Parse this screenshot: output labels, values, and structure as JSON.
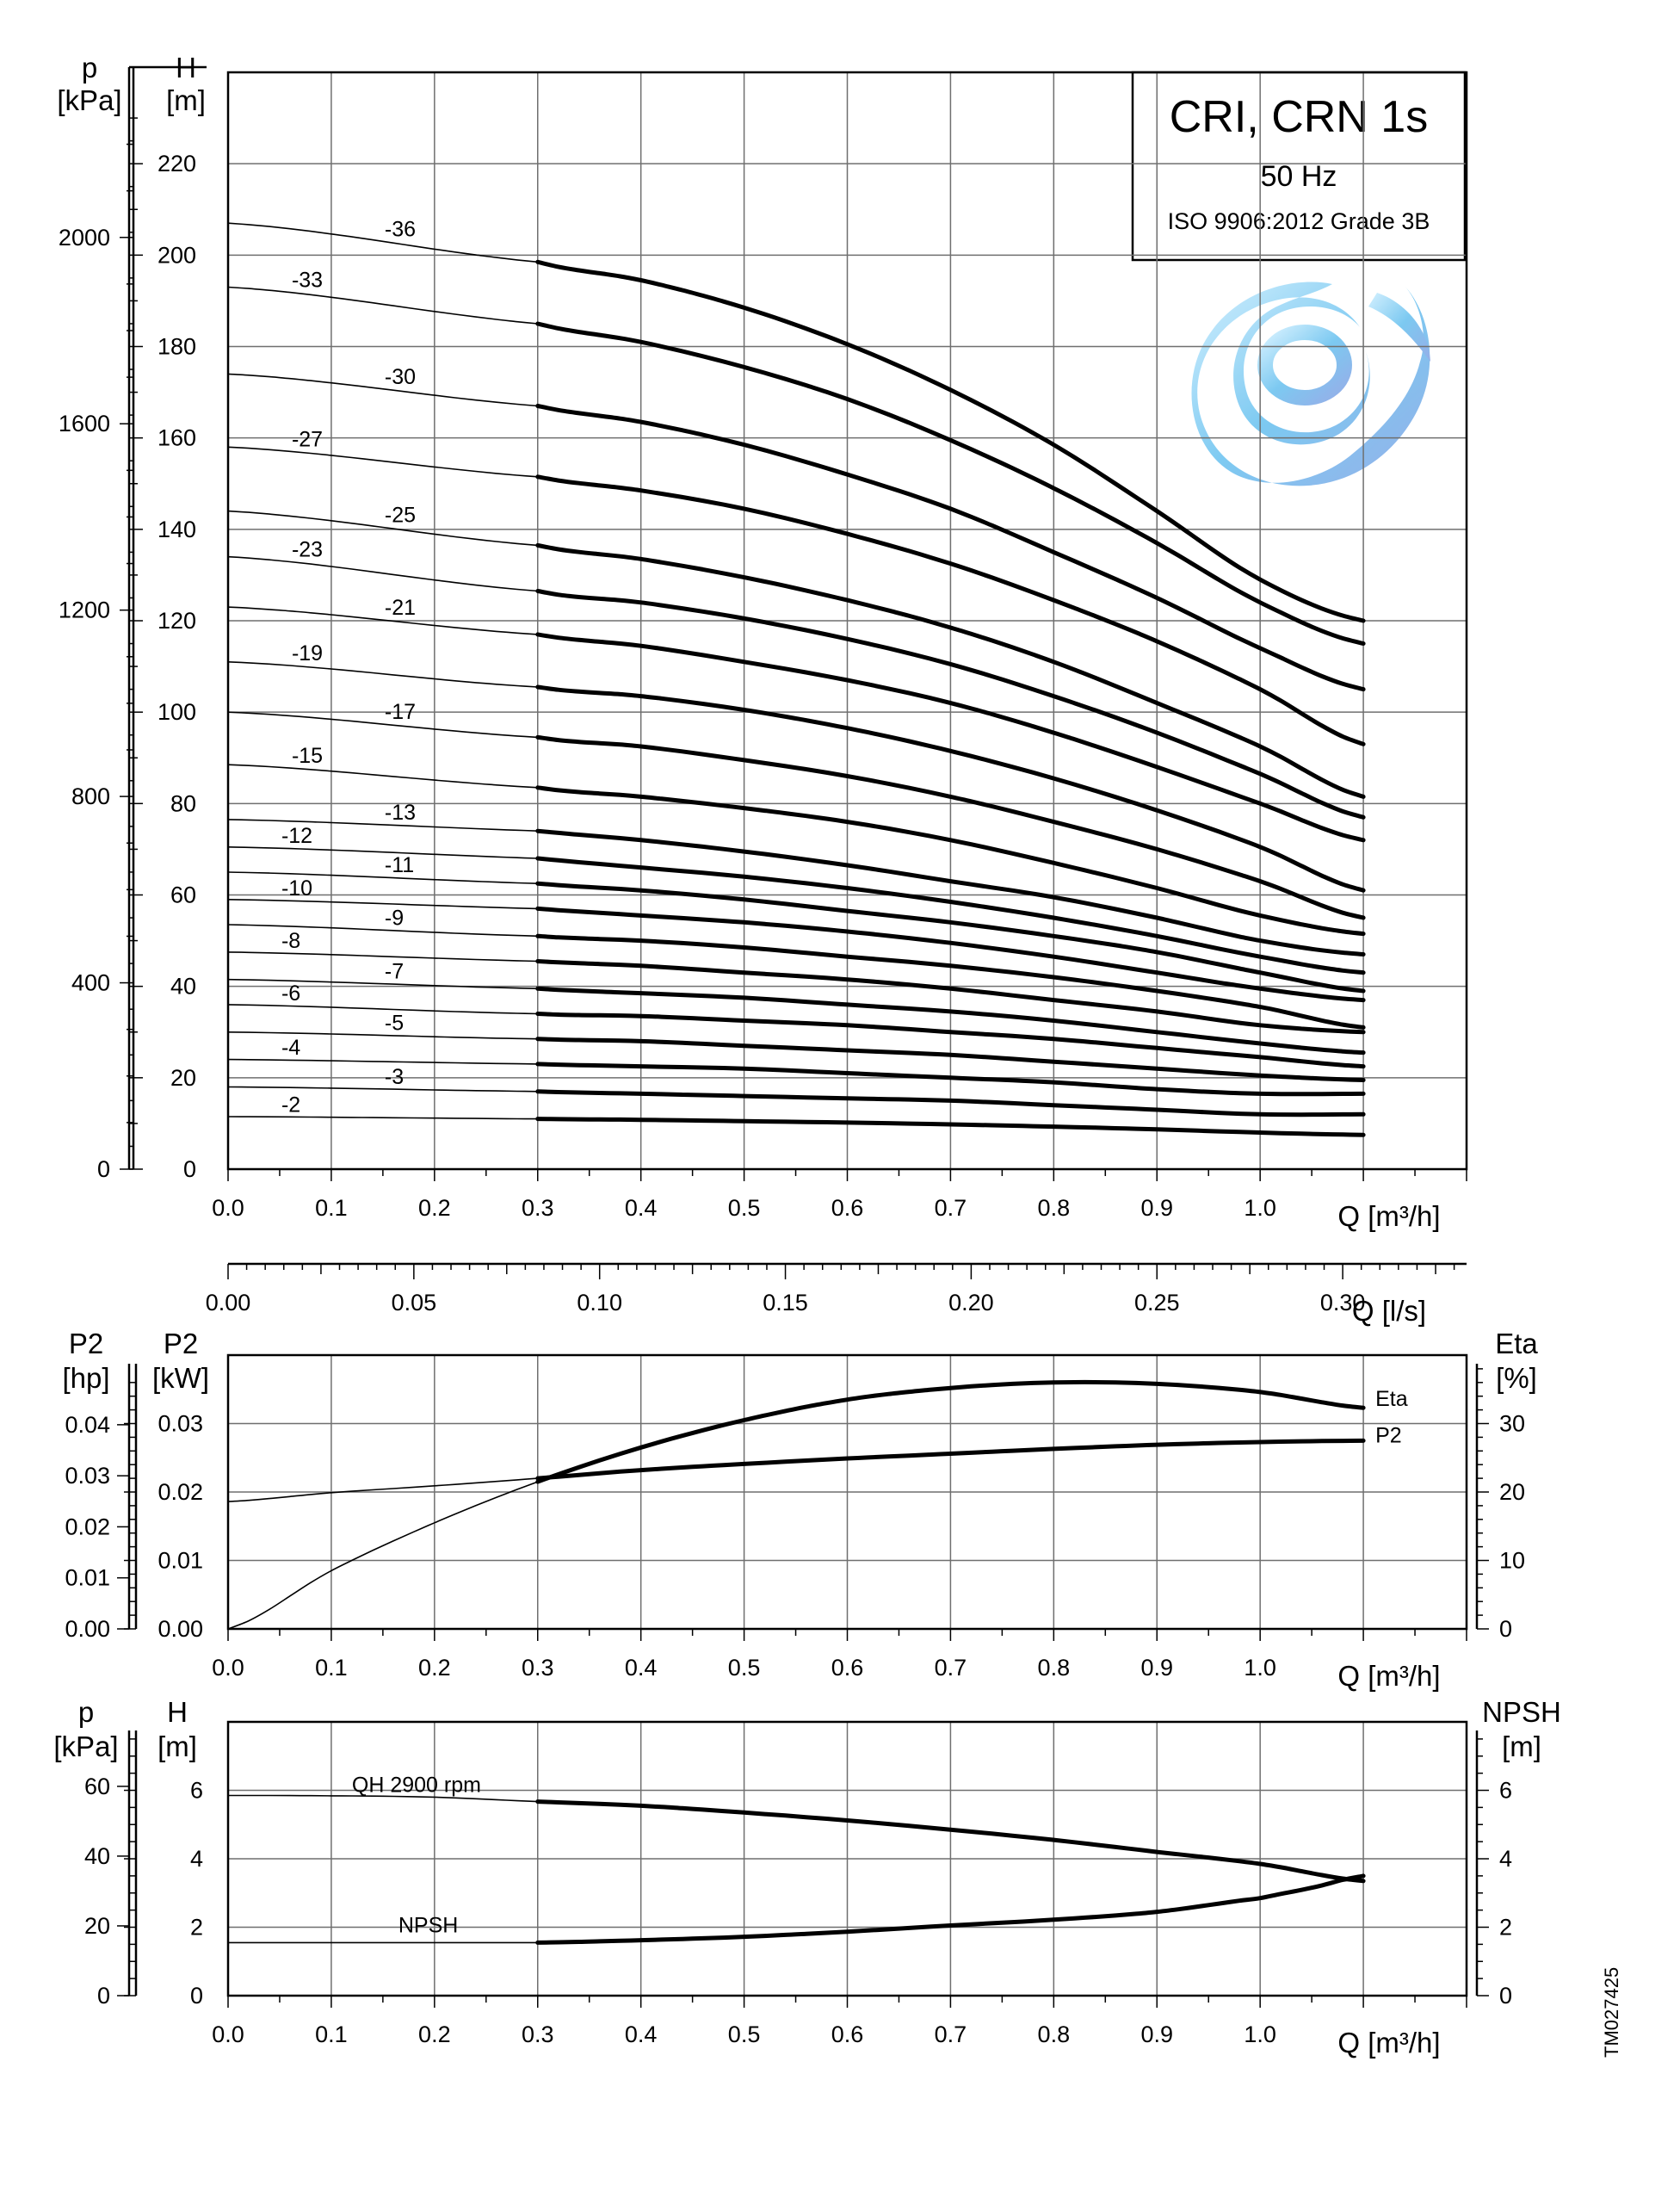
{
  "title_box": {
    "title": "CRI, CRN 1s",
    "frequency": "50 Hz",
    "standard": "ISO 9906:2012 Grade 3B"
  },
  "document_id": "TM027425",
  "logo": "swirl-logo",
  "chart_data": [
    {
      "id": "head",
      "type": "line",
      "xlabel": "Q [m³/h]",
      "ylabel": "H [m]",
      "y2label": "p [kPa]",
      "xlim": [
        0,
        1.2
      ],
      "ylim": [
        0,
        240
      ],
      "x_ticks": [
        "0.0",
        "0.1",
        "0.2",
        "0.3",
        "0.4",
        "0.5",
        "0.6",
        "0.7",
        "0.8",
        "0.9",
        "1.0"
      ],
      "y_ticks": [
        "0",
        "20",
        "40",
        "60",
        "80",
        "100",
        "120",
        "140",
        "160",
        "180",
        "200",
        "220"
      ],
      "p_ticks": [
        "0",
        "400",
        "800",
        "1200",
        "1600",
        "2000"
      ],
      "flow_axis": {
        "label": "Q [l/s]",
        "ticks": [
          "0.00",
          "0.05",
          "0.10",
          "0.15",
          "0.20",
          "0.25",
          "0.30"
        ]
      },
      "thin_section": [
        0.0,
        0.3
      ],
      "thick_section": [
        0.3,
        1.1
      ],
      "series": [
        {
          "name": "-36",
          "x": [
            0,
            0.3,
            0.4,
            0.5,
            0.6,
            0.7,
            0.8,
            0.9,
            1.0,
            1.1
          ],
          "values": [
            207,
            198.5,
            194.5,
            188.5,
            180.5,
            170.5,
            158.5,
            144,
            129,
            120
          ]
        },
        {
          "name": "-33",
          "x": [
            0,
            0.3,
            0.4,
            0.5,
            0.6,
            0.7,
            0.8,
            0.9,
            1.0,
            1.1
          ],
          "values": [
            193,
            185,
            181,
            175.5,
            168.5,
            159.5,
            149,
            137,
            124,
            115
          ]
        },
        {
          "name": "-30",
          "x": [
            0,
            0.3,
            0.4,
            0.5,
            0.6,
            0.7,
            0.8,
            0.9,
            1.0,
            1.1
          ],
          "values": [
            174,
            167,
            163.5,
            158.5,
            152,
            144.5,
            135,
            125,
            114,
            105
          ]
        },
        {
          "name": "-27",
          "x": [
            0,
            0.3,
            0.4,
            0.5,
            0.6,
            0.7,
            0.8,
            0.9,
            1.0,
            1.1
          ],
          "values": [
            158,
            151.5,
            148.5,
            144.5,
            139,
            132.5,
            124.5,
            115.5,
            105,
            93
          ]
        },
        {
          "name": "-25",
          "x": [
            0,
            0.3,
            0.4,
            0.5,
            0.6,
            0.7,
            0.8,
            0.9,
            1.0,
            1.1
          ],
          "values": [
            144,
            136.5,
            133.5,
            129.5,
            124.5,
            118.5,
            111,
            102,
            92.5,
            81.5
          ]
        },
        {
          "name": "-23",
          "x": [
            0,
            0.3,
            0.4,
            0.5,
            0.6,
            0.7,
            0.8,
            0.9,
            1.0,
            1.1
          ],
          "values": [
            134,
            126.5,
            124,
            120.5,
            116,
            110.5,
            103.5,
            95.5,
            86.5,
            77
          ]
        },
        {
          "name": "-21",
          "x": [
            0,
            0.3,
            0.4,
            0.5,
            0.6,
            0.7,
            0.8,
            0.9,
            1.0,
            1.1
          ],
          "values": [
            123,
            117,
            114.5,
            111,
            107,
            102,
            95.5,
            88,
            80,
            72
          ]
        },
        {
          "name": "-19",
          "x": [
            0,
            0.3,
            0.4,
            0.5,
            0.6,
            0.7,
            0.8,
            0.9,
            1.0,
            1.1
          ],
          "values": [
            111,
            105.5,
            103.5,
            100.5,
            96.5,
            91.5,
            85.5,
            78.5,
            70.5,
            61
          ]
        },
        {
          "name": "-17",
          "x": [
            0,
            0.3,
            0.4,
            0.5,
            0.6,
            0.7,
            0.8,
            0.9,
            1.0,
            1.1
          ],
          "values": [
            100,
            94.5,
            92.5,
            89.5,
            86,
            81.5,
            76,
            70,
            63,
            55
          ]
        },
        {
          "name": "-15",
          "x": [
            0,
            0.3,
            0.4,
            0.5,
            0.6,
            0.7,
            0.8,
            0.9,
            1.0,
            1.1
          ],
          "values": [
            88.5,
            83.5,
            81.5,
            79,
            76,
            72,
            67,
            61.5,
            55.5,
            51.5
          ]
        },
        {
          "name": "-13",
          "x": [
            0,
            0.3,
            0.4,
            0.5,
            0.6,
            0.7,
            0.8,
            0.9,
            1.0,
            1.1
          ],
          "values": [
            76.5,
            74,
            72,
            69.5,
            66.5,
            63,
            59.5,
            55,
            50,
            47
          ]
        },
        {
          "name": "-12",
          "x": [
            0,
            0.3,
            0.4,
            0.5,
            0.6,
            0.7,
            0.8,
            0.9,
            1.0,
            1.1
          ],
          "values": [
            70.5,
            68,
            66,
            64,
            61.5,
            58.5,
            55,
            51,
            46.5,
            43
          ]
        },
        {
          "name": "-11",
          "x": [
            0,
            0.3,
            0.4,
            0.5,
            0.6,
            0.7,
            0.8,
            0.9,
            1.0,
            1.1
          ],
          "values": [
            65,
            62.5,
            61,
            59,
            56.5,
            54,
            51,
            47.5,
            43,
            39
          ]
        },
        {
          "name": "-10",
          "x": [
            0,
            0.3,
            0.4,
            0.5,
            0.6,
            0.7,
            0.8,
            0.9,
            1.0,
            1.1
          ],
          "values": [
            59,
            57,
            55.5,
            54,
            52,
            49.5,
            46.5,
            43,
            39.5,
            37
          ]
        },
        {
          "name": "-9",
          "x": [
            0,
            0.3,
            0.4,
            0.5,
            0.6,
            0.7,
            0.8,
            0.9,
            1.0,
            1.1
          ],
          "values": [
            53.5,
            51,
            50,
            48.5,
            46.5,
            44.5,
            42,
            39,
            35.5,
            31
          ]
        },
        {
          "name": "-8",
          "x": [
            0,
            0.3,
            0.4,
            0.5,
            0.6,
            0.7,
            0.8,
            0.9,
            1.0,
            1.1
          ],
          "values": [
            47.5,
            45.5,
            44.5,
            43,
            41.5,
            39.5,
            37,
            34.5,
            31.5,
            30
          ]
        },
        {
          "name": "-7",
          "x": [
            0,
            0.3,
            0.4,
            0.5,
            0.6,
            0.7,
            0.8,
            0.9,
            1.0,
            1.1
          ],
          "values": [
            41.5,
            39.5,
            38.5,
            37.5,
            36,
            34.5,
            32.5,
            30,
            27.5,
            25.5
          ]
        },
        {
          "name": "-6",
          "x": [
            0,
            0.3,
            0.4,
            0.5,
            0.6,
            0.7,
            0.8,
            0.9,
            1.0,
            1.1
          ],
          "values": [
            36,
            34,
            33.5,
            32.5,
            31.5,
            30,
            28.5,
            26.5,
            24.5,
            22.5
          ]
        },
        {
          "name": "-5",
          "x": [
            0,
            0.3,
            0.4,
            0.5,
            0.6,
            0.7,
            0.8,
            0.9,
            1.0,
            1.1
          ],
          "values": [
            30,
            28.5,
            28,
            27,
            26,
            25,
            23.5,
            22,
            20.5,
            19.5
          ]
        },
        {
          "name": "-4",
          "x": [
            0,
            0.3,
            0.4,
            0.5,
            0.6,
            0.7,
            0.8,
            0.9,
            1.0,
            1.1
          ],
          "values": [
            24,
            23,
            22.5,
            22,
            21,
            20,
            19,
            17.5,
            16.5,
            16.5
          ]
        },
        {
          "name": "-3",
          "x": [
            0,
            0.3,
            0.4,
            0.5,
            0.6,
            0.7,
            0.8,
            0.9,
            1.0,
            1.1
          ],
          "values": [
            18,
            17,
            16.5,
            16,
            15.5,
            15,
            14,
            13,
            12,
            12
          ]
        },
        {
          "name": "-2",
          "x": [
            0,
            0.3,
            0.4,
            0.5,
            0.6,
            0.7,
            0.8,
            0.9,
            1.0,
            1.1
          ],
          "values": [
            11.5,
            11,
            10.8,
            10.5,
            10.2,
            9.8,
            9.3,
            8.7,
            8,
            7.5
          ]
        }
      ]
    },
    {
      "id": "power-efficiency",
      "type": "line",
      "xlabel": "Q [m³/h]",
      "ylabel": "P2 [kW]",
      "y2label": "P2 [hp]",
      "y3label": "Eta [%]",
      "xlim": [
        0,
        1.2
      ],
      "ylim": [
        0,
        0.04
      ],
      "eta_lim": [
        0,
        40
      ],
      "x_ticks": [
        "0.0",
        "0.1",
        "0.2",
        "0.3",
        "0.4",
        "0.5",
        "0.6",
        "0.7",
        "0.8",
        "0.9",
        "1.0"
      ],
      "kw_ticks": [
        "0.00",
        "0.01",
        "0.02",
        "0.03"
      ],
      "hp_ticks": [
        "0.00",
        "0.01",
        "0.02",
        "0.03",
        "0.04"
      ],
      "eta_ticks": [
        "0",
        "10",
        "20",
        "30"
      ],
      "series": [
        {
          "name": "P2",
          "unit": "kW",
          "x": [
            0,
            0.1,
            0.2,
            0.3,
            0.4,
            0.5,
            0.6,
            0.7,
            0.8,
            0.9,
            1.0,
            1.1
          ],
          "values": [
            0.0186,
            0.0199,
            0.0209,
            0.022,
            0.0232,
            0.0241,
            0.0249,
            0.0256,
            0.0263,
            0.0269,
            0.0273,
            0.0275
          ]
        },
        {
          "name": "Eta",
          "unit": "%",
          "x": [
            0,
            0.1,
            0.2,
            0.3,
            0.4,
            0.5,
            0.6,
            0.7,
            0.8,
            0.9,
            1.0,
            1.1
          ],
          "values": [
            0,
            8.5,
            15.5,
            21.5,
            26.5,
            30.5,
            33.5,
            35.2,
            36,
            35.8,
            34.6,
            32.3
          ]
        }
      ]
    },
    {
      "id": "npsh",
      "type": "line",
      "xlabel": "Q [m³/h]",
      "ylabel": "H [m]",
      "y2label": "p [kPa]",
      "y3label": "NPSH [m]",
      "xlim": [
        0,
        1.2
      ],
      "ylim": [
        0,
        8
      ],
      "x_ticks": [
        "0.0",
        "0.1",
        "0.2",
        "0.3",
        "0.4",
        "0.5",
        "0.6",
        "0.7",
        "0.8",
        "0.9",
        "1.0"
      ],
      "h_ticks": [
        "0",
        "2",
        "4",
        "6"
      ],
      "p_ticks": [
        "0",
        "20",
        "40",
        "60"
      ],
      "npsh_ticks": [
        "0",
        "2",
        "4",
        "6"
      ],
      "series": [
        {
          "name": "QH 2900 rpm",
          "x": [
            0,
            0.1,
            0.2,
            0.3,
            0.4,
            0.5,
            0.6,
            0.7,
            0.8,
            0.9,
            1.0,
            1.1
          ],
          "values": [
            5.85,
            5.84,
            5.8,
            5.67,
            5.55,
            5.35,
            5.12,
            4.85,
            4.55,
            4.2,
            3.85,
            3.35
          ]
        },
        {
          "name": "NPSH",
          "x": [
            0.3,
            0.4,
            0.5,
            0.6,
            0.7,
            0.8,
            0.9,
            1.0,
            1.05,
            1.1
          ],
          "values": [
            1.55,
            1.62,
            1.72,
            1.87,
            2.05,
            2.22,
            2.45,
            2.85,
            3.15,
            3.5
          ]
        }
      ]
    }
  ]
}
